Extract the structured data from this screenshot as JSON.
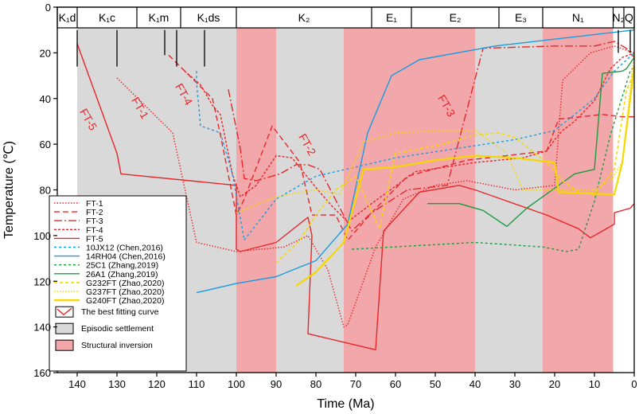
{
  "chart_data": {
    "type": "line",
    "xlabel": "Time (Ma)",
    "ylabel": "Temperature (℃)",
    "xlim": [
      145,
      0
    ],
    "ylim": [
      0,
      160
    ],
    "x_ticks": [
      140,
      130,
      120,
      110,
      100,
      90,
      80,
      70,
      60,
      50,
      40,
      30,
      20,
      10,
      0
    ],
    "y_ticks": [
      0,
      20,
      40,
      60,
      80,
      100,
      120,
      140,
      160
    ],
    "periods": [
      {
        "label": "K₁d",
        "start": 145,
        "end": 140
      },
      {
        "label": "K₁c",
        "start": 140,
        "end": 125
      },
      {
        "label": "K₁m",
        "start": 125,
        "end": 114
      },
      {
        "label": "K₁ds",
        "start": 114,
        "end": 100
      },
      {
        "label": "K₂",
        "start": 100,
        "end": 66
      },
      {
        "label": "E₁",
        "start": 66,
        "end": 56
      },
      {
        "label": "E₂",
        "start": 56,
        "end": 34
      },
      {
        "label": "E₃",
        "start": 34,
        "end": 23
      },
      {
        "label": "N₁",
        "start": 23,
        "end": 5.3
      },
      {
        "label": "N₂",
        "start": 5.3,
        "end": 2.6
      },
      {
        "label": "Q",
        "start": 2.6,
        "end": 0
      }
    ],
    "episodic_settlement": [
      [
        140,
        100
      ],
      [
        90,
        73
      ],
      [
        40,
        23
      ]
    ],
    "structural_inversion": [
      [
        100,
        90
      ],
      [
        73,
        40
      ],
      [
        23,
        5.3
      ]
    ],
    "ft_labels": [
      {
        "text": "FT-5",
        "x": 138,
        "y": 50,
        "color": "#e8262a"
      },
      {
        "text": "FT-1",
        "x": 125,
        "y": 45,
        "color": "#e8262a"
      },
      {
        "text": "FT-4",
        "x": 114,
        "y": 39,
        "color": "#e8262a"
      },
      {
        "text": "FT-2",
        "x": 83,
        "y": 61,
        "color": "#e8262a"
      },
      {
        "text": "FT-3",
        "x": 48,
        "y": 44,
        "color": "#e8262a"
      }
    ],
    "markers": [
      {
        "x": 140,
        "y_top": 10,
        "y_bottom": 26
      },
      {
        "x": 130,
        "y_top": 10,
        "y_bottom": 26
      },
      {
        "x": 118,
        "y_top": 10,
        "y_bottom": 21
      },
      {
        "x": 115,
        "y_top": 10,
        "y_bottom": 26
      },
      {
        "x": 108,
        "y_top": 10,
        "y_bottom": 26
      },
      {
        "x": 4,
        "y_top": 10,
        "y_bottom": 20
      },
      {
        "x": 1,
        "y_top": 10,
        "y_bottom": 20
      }
    ],
    "series": [
      {
        "name": "FT-1",
        "color": "#e8262a",
        "dash": "1.5,2",
        "width": 1.4,
        "points": [
          [
            130,
            31
          ],
          [
            116,
            55
          ],
          [
            110,
            103
          ],
          [
            100,
            107
          ],
          [
            88,
            105
          ],
          [
            82,
            100
          ],
          [
            77,
            115
          ],
          [
            73,
            140
          ],
          [
            72,
            139
          ],
          [
            65,
            105
          ],
          [
            58,
            84
          ],
          [
            50,
            78
          ],
          [
            42,
            76
          ],
          [
            30,
            80
          ],
          [
            20,
            78
          ],
          [
            18,
            32
          ],
          [
            11,
            20
          ],
          [
            5,
            17
          ],
          [
            0,
            20
          ]
        ]
      },
      {
        "name": "FT-2",
        "color": "#e8262a",
        "dash": "7,4",
        "width": 1.4,
        "points": [
          [
            117,
            21
          ],
          [
            106,
            40
          ],
          [
            104,
            56
          ],
          [
            100,
            91
          ],
          [
            98,
            84
          ],
          [
            91,
            52
          ],
          [
            84,
            68
          ],
          [
            81,
            91
          ],
          [
            75,
            91
          ],
          [
            72,
            102
          ],
          [
            66,
            90
          ],
          [
            57,
            74
          ],
          [
            42,
            67
          ],
          [
            22,
            63
          ],
          [
            19,
            49
          ],
          [
            8,
            47
          ],
          [
            3,
            48
          ],
          [
            0,
            48
          ]
        ]
      },
      {
        "name": "FT-3",
        "color": "#e8262a",
        "dash": "10,3,2,3",
        "width": 1.4,
        "points": [
          [
            102,
            36
          ],
          [
            99,
            62
          ],
          [
            98,
            75
          ],
          [
            95,
            76
          ],
          [
            89,
            73
          ],
          [
            85,
            69
          ],
          [
            82,
            69
          ],
          [
            79,
            71
          ],
          [
            71,
            98
          ],
          [
            66,
            90
          ],
          [
            57,
            80
          ],
          [
            47,
            78
          ],
          [
            38,
            18
          ],
          [
            20,
            17
          ],
          [
            10,
            17
          ],
          [
            5,
            15
          ],
          [
            2,
            18
          ],
          [
            0,
            22
          ]
        ]
      },
      {
        "name": "FT-4",
        "color": "#e8262a",
        "dash": "3,2",
        "width": 1.4,
        "points": [
          [
            113,
            28
          ],
          [
            109,
            34
          ],
          [
            106,
            43
          ],
          [
            104,
            47
          ],
          [
            101,
            73
          ],
          [
            99,
            83
          ],
          [
            95,
            78
          ],
          [
            90,
            65
          ],
          [
            86,
            66
          ],
          [
            80,
            79
          ],
          [
            76,
            87
          ],
          [
            72,
            94
          ],
          [
            66,
            86
          ],
          [
            55,
            72
          ],
          [
            40,
            68
          ],
          [
            28,
            66
          ],
          [
            22,
            63
          ],
          [
            20,
            58
          ],
          [
            18,
            54
          ],
          [
            15,
            50
          ],
          [
            10,
            41
          ],
          [
            6,
            27
          ],
          [
            3,
            22
          ],
          [
            0,
            20
          ]
        ]
      },
      {
        "name": "FT-5",
        "color": "#e8262a",
        "dash": "",
        "width": 1.4,
        "points": [
          [
            140,
            16
          ],
          [
            130,
            64
          ],
          [
            129,
            73
          ],
          [
            100,
            78
          ],
          [
            100,
            106
          ],
          [
            99,
            107
          ],
          [
            90,
            103
          ],
          [
            82,
            92
          ],
          [
            81,
            100
          ],
          [
            82,
            143
          ],
          [
            65,
            150
          ],
          [
            63,
            98
          ],
          [
            54,
            81
          ],
          [
            44,
            78
          ],
          [
            40,
            80
          ],
          [
            22,
            91
          ],
          [
            14,
            97
          ],
          [
            11,
            101
          ],
          [
            9,
            99
          ],
          [
            5,
            95
          ],
          [
            5,
            90
          ],
          [
            1,
            88
          ],
          [
            0,
            86
          ]
        ]
      },
      {
        "name": "10JX12 (Chen,2016)",
        "color": "#1a9ce0",
        "dash": "3,3",
        "width": 1.4,
        "points": [
          [
            110,
            28
          ],
          [
            110,
            33
          ],
          [
            109,
            52
          ],
          [
            104,
            55
          ],
          [
            101,
            73
          ],
          [
            98,
            102
          ],
          [
            90,
            84
          ],
          [
            80,
            74
          ],
          [
            60,
            66
          ],
          [
            30,
            58
          ],
          [
            20,
            54
          ],
          [
            10,
            40
          ],
          [
            5,
            28
          ],
          [
            0,
            20
          ]
        ]
      },
      {
        "name": "14RH04 (Chen,2016)",
        "color": "#1a9ce0",
        "dash": "",
        "width": 1.4,
        "points": [
          [
            110,
            125
          ],
          [
            100,
            121
          ],
          [
            90,
            118
          ],
          [
            80,
            111
          ],
          [
            72,
            95
          ],
          [
            67,
            55
          ],
          [
            61,
            30
          ],
          [
            54,
            23
          ],
          [
            35,
            17
          ],
          [
            20,
            14
          ],
          [
            10,
            12
          ],
          [
            0,
            10
          ]
        ]
      },
      {
        "name": "25C1 (Zhang,2019)",
        "color": "#1c9b40",
        "dash": "3,3",
        "width": 1.4,
        "points": [
          [
            71,
            106
          ],
          [
            40,
            103
          ],
          [
            23,
            105
          ],
          [
            17,
            107
          ],
          [
            14,
            106
          ],
          [
            10,
            85
          ],
          [
            6,
            56
          ],
          [
            1,
            28
          ],
          [
            0,
            26
          ]
        ]
      },
      {
        "name": "26A1 (Zhang,2019)",
        "color": "#1c9b40",
        "dash": "",
        "width": 1.4,
        "points": [
          [
            52,
            86
          ],
          [
            44,
            86
          ],
          [
            38,
            89
          ],
          [
            32,
            96
          ],
          [
            27,
            88
          ],
          [
            15,
            73
          ],
          [
            10,
            71
          ],
          [
            8,
            29
          ],
          [
            3,
            28
          ],
          [
            2,
            27
          ],
          [
            0,
            22
          ]
        ]
      },
      {
        "name": "G232FT (Zhao,2020)",
        "color": "#f5d800",
        "dash": "4,3",
        "width": 1.6,
        "points": [
          [
            90,
            112
          ],
          [
            84,
            102
          ],
          [
            80,
            91
          ],
          [
            75,
            80
          ],
          [
            70,
            74
          ],
          [
            64,
            97
          ],
          [
            60,
            64
          ],
          [
            48,
            60
          ],
          [
            40,
            56
          ],
          [
            34,
            55
          ],
          [
            30,
            57
          ],
          [
            22,
            68
          ],
          [
            18,
            76
          ],
          [
            14,
            81
          ],
          [
            10,
            82
          ],
          [
            5,
            71
          ],
          [
            2,
            37
          ],
          [
            0,
            28
          ]
        ]
      },
      {
        "name": "G237FT (Zhao,2020)",
        "color": "#f5d800",
        "dash": "1.5,2",
        "width": 1.6,
        "points": [
          [
            100,
            90
          ],
          [
            90,
            83
          ],
          [
            80,
            80
          ],
          [
            74,
            82
          ],
          [
            68,
            59
          ],
          [
            60,
            55
          ],
          [
            48,
            54
          ],
          [
            40,
            54
          ],
          [
            32,
            64
          ],
          [
            28,
            80
          ],
          [
            20,
            80
          ],
          [
            10,
            80
          ],
          [
            6,
            76
          ],
          [
            3,
            68
          ],
          [
            0,
            20
          ]
        ]
      },
      {
        "name": "G240FT (Zhao,2020)",
        "color": "#f5d800",
        "dash": "",
        "width": 2.2,
        "points": [
          [
            85,
            122
          ],
          [
            80,
            116
          ],
          [
            73,
            103
          ],
          [
            68,
            71
          ],
          [
            60,
            70
          ],
          [
            50,
            67
          ],
          [
            40,
            65
          ],
          [
            30,
            66
          ],
          [
            20,
            68
          ],
          [
            19,
            81
          ],
          [
            5,
            82
          ],
          [
            3,
            68
          ],
          [
            1,
            40
          ],
          [
            0,
            26
          ]
        ]
      }
    ],
    "legend": {
      "position": "lower-left",
      "items": [
        {
          "label": "FT-1",
          "kind": "line",
          "series": 0
        },
        {
          "label": "FT-2",
          "kind": "line",
          "series": 1
        },
        {
          "label": "FT-3",
          "kind": "line",
          "series": 2
        },
        {
          "label": "FT-4",
          "kind": "line",
          "series": 3
        },
        {
          "label": "FT-5",
          "kind": "line",
          "series": 4
        },
        {
          "label": "10JX12 (Chen,2016)",
          "kind": "line",
          "series": 5
        },
        {
          "label": "14RH04 (Chen,2016)",
          "kind": "line",
          "series": 6
        },
        {
          "label": "25C1 (Zhang,2019)",
          "kind": "line",
          "series": 7
        },
        {
          "label": "26A1 (Zhang,2019)",
          "kind": "line",
          "series": 8
        },
        {
          "label": "G232FT (Zhao,2020)",
          "kind": "line",
          "series": 9
        },
        {
          "label": "G237FT (Zhao,2020)",
          "kind": "line",
          "series": 10
        },
        {
          "label": "G240FT (Zhao,2020)",
          "kind": "line",
          "series": 11
        },
        {
          "label": "The best fitting curve",
          "kind": "box-curve",
          "color": "#e8262a"
        },
        {
          "label": "Episodic settlement",
          "kind": "box-fill",
          "color": "#d9d9d9"
        },
        {
          "label": "Structural inversion",
          "kind": "box-fill",
          "color": "#f2a7aa"
        }
      ]
    },
    "colors": {
      "settlement": "#d9d9d9",
      "inversion": "#f2a7aa",
      "axis": "#000000"
    }
  }
}
